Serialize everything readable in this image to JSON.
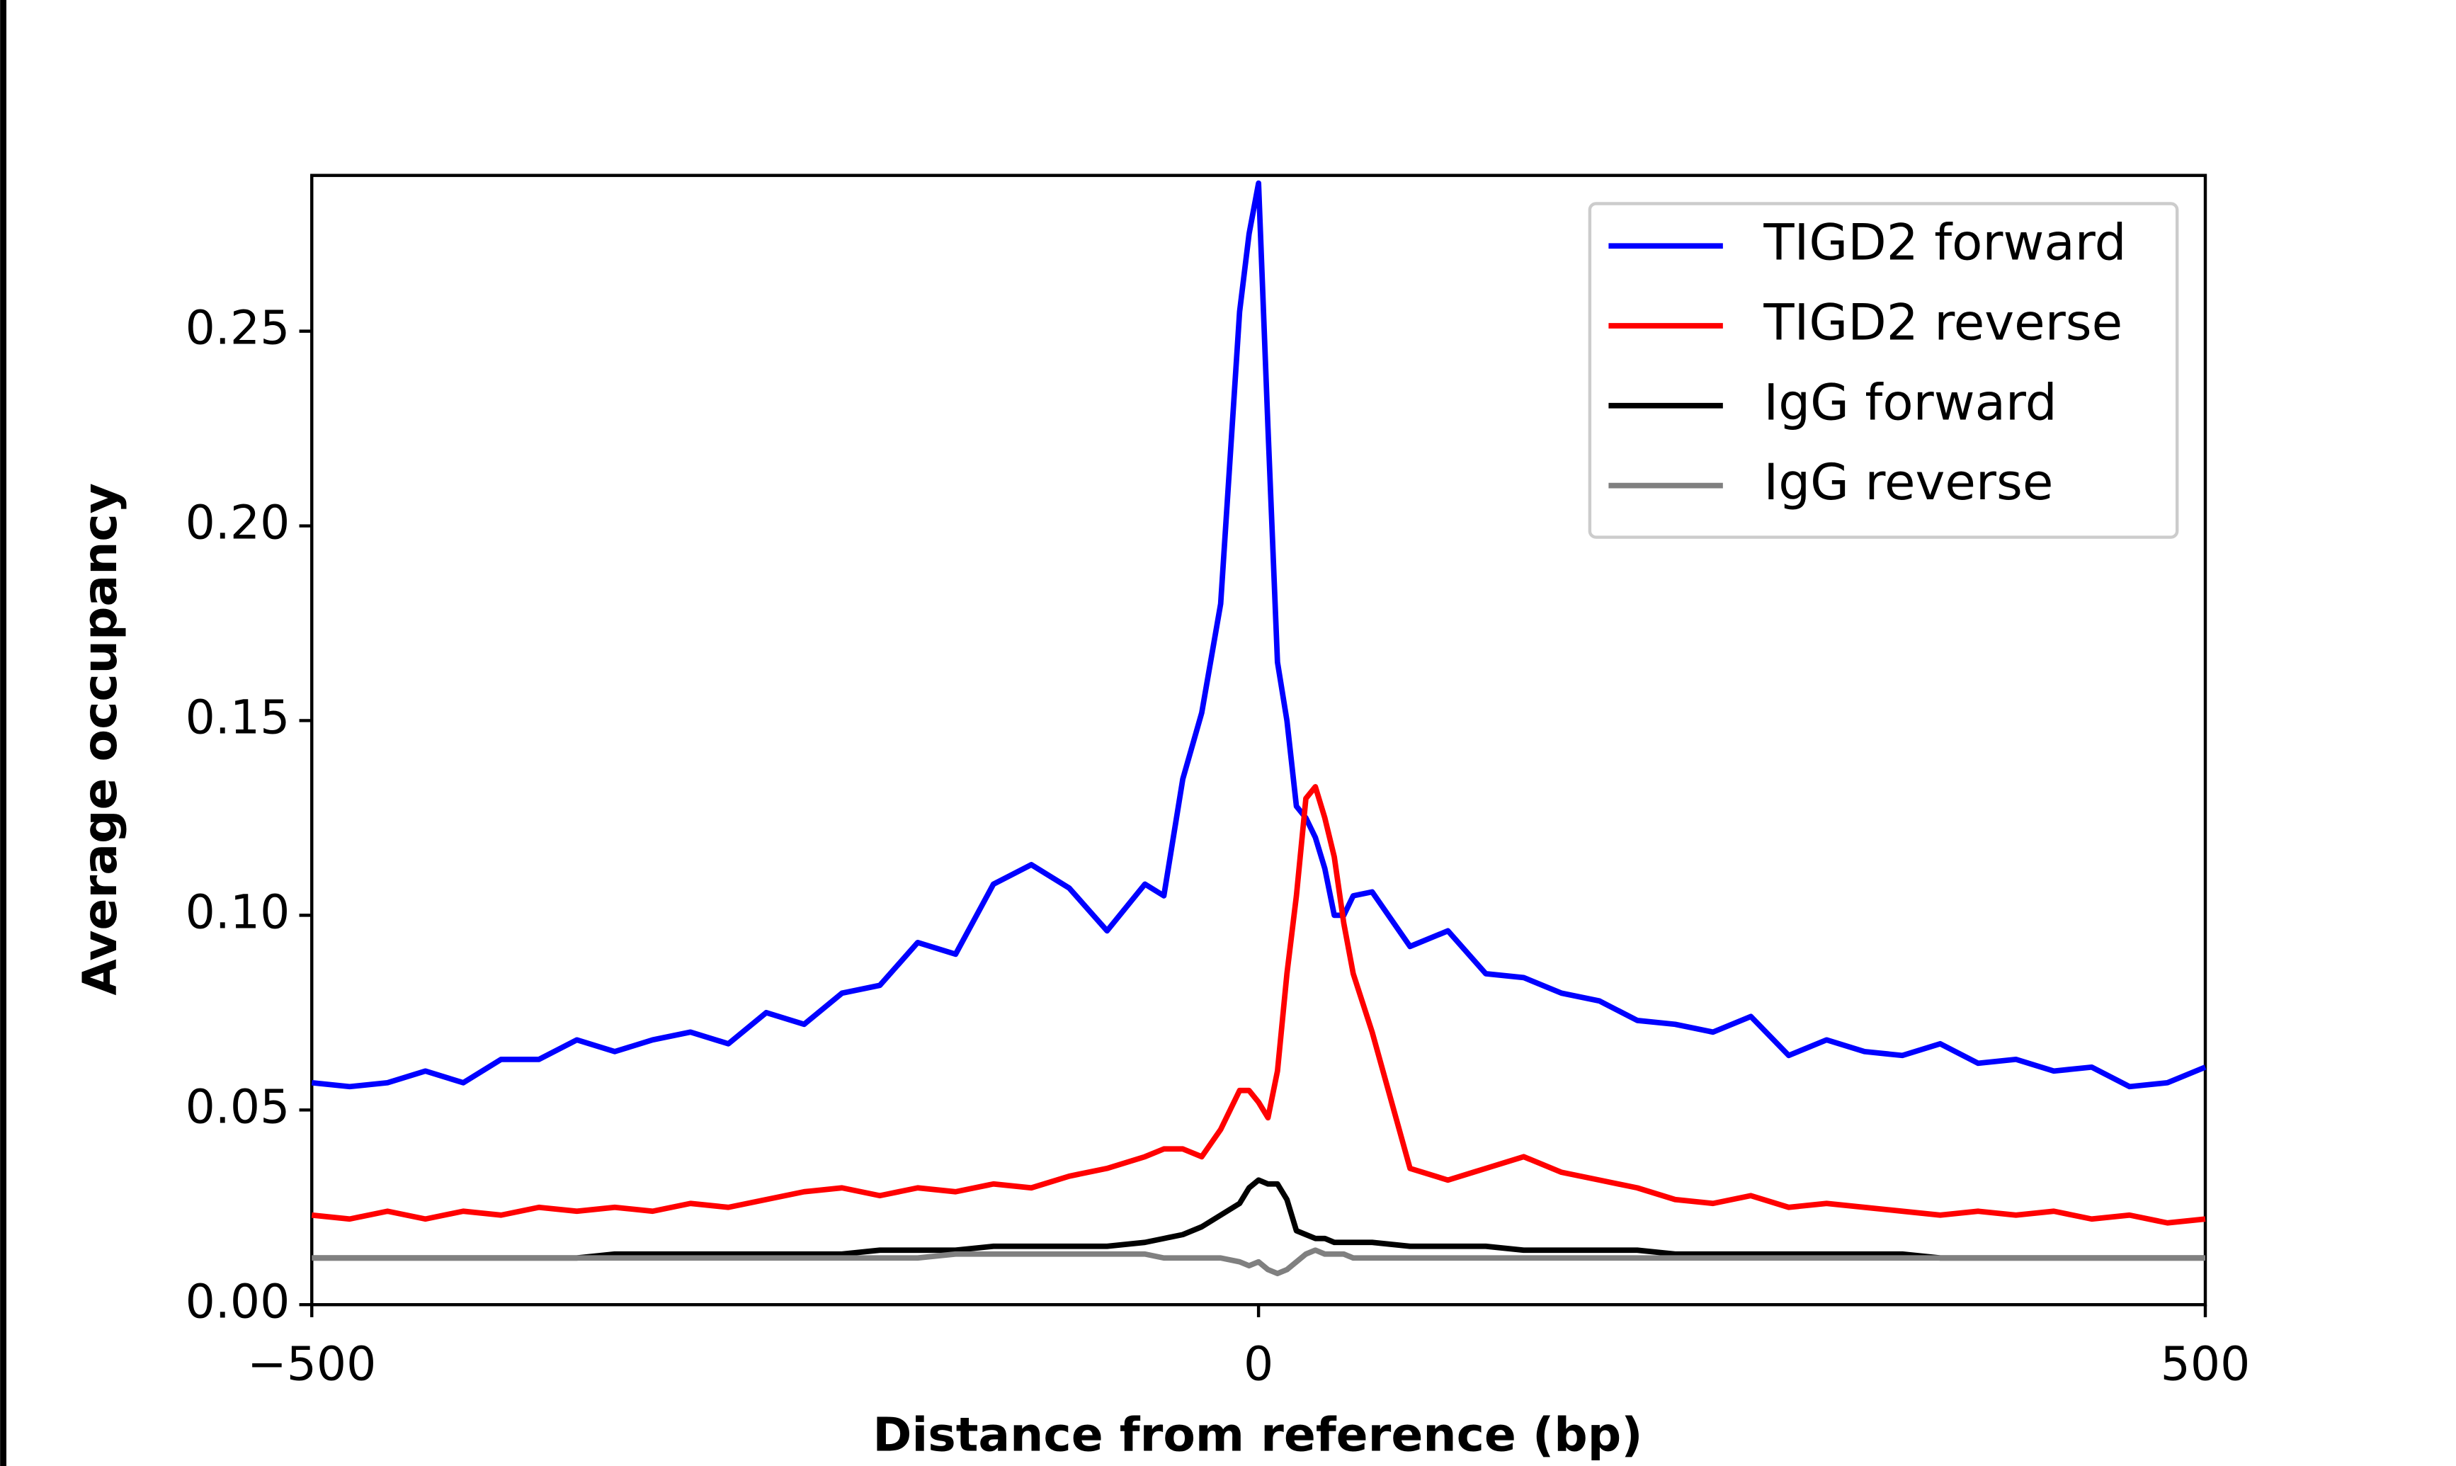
{
  "chart_data": {
    "type": "line",
    "xlabel": "Distance from reference (bp)",
    "ylabel": "Average occupancy",
    "x": [
      -500,
      -480,
      -460,
      -440,
      -420,
      -400,
      -380,
      -360,
      -340,
      -320,
      -300,
      -280,
      -260,
      -240,
      -220,
      -200,
      -180,
      -160,
      -140,
      -120,
      -100,
      -80,
      -60,
      -50,
      -40,
      -30,
      -20,
      -10,
      -5,
      0,
      5,
      10,
      15,
      20,
      25,
      30,
      35,
      40,
      45,
      50,
      60,
      80,
      100,
      120,
      140,
      160,
      180,
      200,
      220,
      240,
      260,
      280,
      300,
      320,
      340,
      360,
      380,
      400,
      420,
      440,
      460,
      480,
      500
    ],
    "series": [
      {
        "name": "TIGD2 forward",
        "color": "#0000ff",
        "values": [
          0.057,
          0.056,
          0.057,
          0.06,
          0.057,
          0.063,
          0.063,
          0.068,
          0.065,
          0.068,
          0.07,
          0.067,
          0.075,
          0.072,
          0.08,
          0.082,
          0.093,
          0.09,
          0.108,
          0.113,
          0.107,
          0.096,
          0.108,
          0.105,
          0.135,
          0.152,
          0.18,
          0.255,
          0.275,
          0.288,
          0.225,
          0.165,
          0.15,
          0.128,
          0.125,
          0.12,
          0.112,
          0.1,
          0.1,
          0.105,
          0.106,
          0.092,
          0.096,
          0.085,
          0.084,
          0.08,
          0.078,
          0.073,
          0.072,
          0.07,
          0.074,
          0.064,
          0.068,
          0.065,
          0.064,
          0.067,
          0.062,
          0.063,
          0.06,
          0.061,
          0.056,
          0.057,
          0.061
        ]
      },
      {
        "name": "TIGD2 reverse",
        "color": "#ff0000",
        "values": [
          0.023,
          0.022,
          0.024,
          0.022,
          0.024,
          0.023,
          0.025,
          0.024,
          0.025,
          0.024,
          0.026,
          0.025,
          0.027,
          0.029,
          0.03,
          0.028,
          0.03,
          0.029,
          0.031,
          0.03,
          0.033,
          0.035,
          0.038,
          0.04,
          0.04,
          0.038,
          0.045,
          0.055,
          0.055,
          0.052,
          0.048,
          0.06,
          0.085,
          0.105,
          0.13,
          0.133,
          0.125,
          0.115,
          0.098,
          0.085,
          0.07,
          0.035,
          0.032,
          0.035,
          0.038,
          0.034,
          0.032,
          0.03,
          0.027,
          0.026,
          0.028,
          0.025,
          0.026,
          0.025,
          0.024,
          0.023,
          0.024,
          0.023,
          0.024,
          0.022,
          0.023,
          0.021,
          0.022
        ]
      },
      {
        "name": "IgG forward",
        "color": "#000000",
        "values": [
          0.012,
          0.012,
          0.012,
          0.012,
          0.012,
          0.012,
          0.012,
          0.012,
          0.013,
          0.013,
          0.013,
          0.013,
          0.013,
          0.013,
          0.013,
          0.014,
          0.014,
          0.014,
          0.015,
          0.015,
          0.015,
          0.015,
          0.016,
          0.017,
          0.018,
          0.02,
          0.023,
          0.026,
          0.03,
          0.032,
          0.031,
          0.031,
          0.027,
          0.019,
          0.018,
          0.017,
          0.017,
          0.016,
          0.016,
          0.016,
          0.016,
          0.015,
          0.015,
          0.015,
          0.014,
          0.014,
          0.014,
          0.014,
          0.013,
          0.013,
          0.013,
          0.013,
          0.013,
          0.013,
          0.013,
          0.012,
          0.012,
          0.012,
          0.012,
          0.012,
          0.012,
          0.012,
          0.012
        ]
      },
      {
        "name": "IgG reverse",
        "color": "#808080",
        "values": [
          0.012,
          0.012,
          0.012,
          0.012,
          0.012,
          0.012,
          0.012,
          0.012,
          0.012,
          0.012,
          0.012,
          0.012,
          0.012,
          0.012,
          0.012,
          0.012,
          0.012,
          0.013,
          0.013,
          0.013,
          0.013,
          0.013,
          0.013,
          0.012,
          0.012,
          0.012,
          0.012,
          0.011,
          0.01,
          0.011,
          0.009,
          0.008,
          0.009,
          0.011,
          0.013,
          0.014,
          0.013,
          0.013,
          0.013,
          0.012,
          0.012,
          0.012,
          0.012,
          0.012,
          0.012,
          0.012,
          0.012,
          0.012,
          0.012,
          0.012,
          0.012,
          0.012,
          0.012,
          0.012,
          0.012,
          0.012,
          0.012,
          0.012,
          0.012,
          0.012,
          0.012,
          0.012,
          0.012
        ]
      }
    ],
    "xlim": [
      -500,
      500
    ],
    "xticks": [
      {
        "value": -500,
        "label": "−500"
      },
      0,
      500
    ],
    "ylim": [
      0,
      0.29
    ],
    "yticks": [
      {
        "value": 0,
        "label": "0.00"
      },
      0.05,
      {
        "value": 0.1,
        "label": "0.10"
      },
      0.15,
      {
        "value": 0.2,
        "label": "0.20"
      },
      0.25
    ],
    "grid": false,
    "legend": "upper right"
  }
}
